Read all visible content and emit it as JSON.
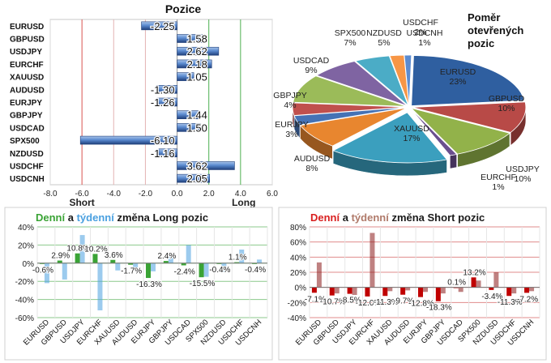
{
  "chart_data": [
    {
      "type": "bar",
      "orientation": "horizontal",
      "title": "Pozice",
      "categories": [
        "EURUSD",
        "GBPUSD",
        "USDJPY",
        "EURCHF",
        "XAUUSD",
        "AUDUSD",
        "EURJPY",
        "GBPJPY",
        "USDCAD",
        "SPX500",
        "NZDUSD",
        "USDCHF",
        "USDCNH"
      ],
      "values": [
        -2.25,
        1.58,
        2.62,
        2.18,
        1.05,
        -1.3,
        -1.26,
        1.44,
        1.5,
        -6.1,
        -1.16,
        3.62,
        2.05
      ],
      "value_labels": [
        "-2.25",
        "1.58",
        "2.62",
        "2.18",
        "1.05",
        "-1.30",
        "-1.26",
        "1.44",
        "1.50",
        "-6.10",
        "-1.16",
        "3.62",
        "2.05"
      ],
      "xlim": [
        -8,
        6
      ],
      "xticks": [
        "-8.0",
        "-6.0",
        "-4.0",
        "-2.0",
        "0.0",
        "2.0",
        "4.0",
        "6.0"
      ],
      "short_label": "Short",
      "long_label": "Long",
      "colors": {
        "bar": "#5b8bd0",
        "bar_dark": "#1f3f7a",
        "short_line": "#d9534f",
        "long_line": "#4caf50"
      }
    },
    {
      "type": "pie",
      "title": [
        "Poměr",
        "otevřených",
        "pozic"
      ],
      "slices": [
        {
          "label": "EURUSD",
          "pct": "23%",
          "value": 23,
          "color": "#2f5fa0"
        },
        {
          "label": "GBPUSD",
          "pct": "10%",
          "value": 10,
          "color": "#b84a47"
        },
        {
          "label": "USDJPY",
          "pct": "10%",
          "value": 10,
          "color": "#92b24a"
        },
        {
          "label": "EURCHF",
          "pct": "1%",
          "value": 1,
          "color": "#6a4f8e"
        },
        {
          "label": "XAUUSD",
          "pct": "17%",
          "value": 17,
          "color": "#3b9fbe"
        },
        {
          "label": "AUDUSD",
          "pct": "8%",
          "value": 8,
          "color": "#e8862f"
        },
        {
          "label": "EURJPY",
          "pct": "3%",
          "value": 3,
          "color": "#4572b5"
        },
        {
          "label": "GBPJPY",
          "pct": "4%",
          "value": 4,
          "color": "#c0504d"
        },
        {
          "label": "USDCAD",
          "pct": "9%",
          "value": 9,
          "color": "#9bbb59"
        },
        {
          "label": "SPX500",
          "pct": "7%",
          "value": 7,
          "color": "#7f64a2"
        },
        {
          "label": "NZDUSD",
          "pct": "5%",
          "value": 5,
          "color": "#4bacc6"
        },
        {
          "label": "USDCHF",
          "pct": "2%",
          "value": 2,
          "color": "#f79646"
        },
        {
          "label": "USDCNH",
          "pct": "1%",
          "value": 1,
          "color": "#5b8bd0"
        }
      ]
    },
    {
      "type": "bar",
      "title": {
        "part1": "Denní",
        "part2": " a ",
        "part3": "týdenní",
        "part4": " změna Long pozic"
      },
      "title_colors": {
        "daily": "#3aa335",
        "weekly": "#4aa0e0",
        "rest": "#1a1a1a"
      },
      "categories": [
        "EURUSD",
        "GBPUSD",
        "USDJPY",
        "EURCHF",
        "XAUUSD",
        "AUDUSD",
        "EURJPY",
        "GBPJPY",
        "USDCAD",
        "SPX500",
        "NZDUSD",
        "USDCHF",
        "USDCNH"
      ],
      "series": [
        {
          "name": "Denní",
          "values": [
            -0.6,
            2.9,
            10.8,
            10.2,
            3.6,
            -1.7,
            -16.3,
            2.4,
            -2.4,
            -15.5,
            -0.4,
            1.1,
            -0.4
          ],
          "color": "#3aa335"
        },
        {
          "name": "týdenní",
          "values": [
            -22,
            -18,
            31,
            -52,
            -8,
            -5,
            -9,
            9,
            20,
            -15,
            -10,
            15,
            4
          ],
          "color": "#4aa0e0"
        }
      ],
      "data_labels": [
        "-0.6%",
        "2.9%",
        "10.8%",
        "10.2%",
        "3.6%",
        "-1.7%",
        "-16.3%",
        "2.4%",
        "-2.4%",
        "-15.5%",
        "-0.4%",
        "1.1%",
        "-0.4%"
      ],
      "ylim": [
        -60,
        40
      ],
      "yticks": [
        "40%",
        "20%",
        "0%",
        "-20%",
        "-40%",
        "-60%"
      ]
    },
    {
      "type": "bar",
      "title": {
        "part1": "Denní",
        "part2": " a ",
        "part3": "týdenní",
        "part4": " změna Short pozic"
      },
      "title_colors": {
        "daily": "#d92020",
        "weekly": "#b07a6a",
        "rest": "#1a1a1a"
      },
      "categories": [
        "EURUSD",
        "GBPUSD",
        "USDJPY",
        "EURCHF",
        "XAUUSD",
        "AUDUSD",
        "EURJPY",
        "GBPJPY",
        "USDCAD",
        "SPX500",
        "NZDUSD",
        "USDCHF",
        "USDCNH"
      ],
      "series": [
        {
          "name": "Denní",
          "values": [
            -7.1,
            -10.7,
            -8.5,
            -12.0,
            -11.3,
            -9.7,
            -12.8,
            -18.3,
            0.1,
            13.2,
            -3.4,
            -11.3,
            -7.2
          ],
          "color": "#c00000"
        },
        {
          "name": "týdenní",
          "values": [
            33,
            -8,
            -10,
            72,
            -5,
            -4,
            -6,
            -8,
            -6,
            9,
            20,
            -8,
            -5
          ],
          "color": "#8b1a1a"
        }
      ],
      "data_labels": [
        "-7.1%",
        "-10.7%",
        "-8.5%",
        "-12.0%",
        "-11.3%",
        "-9.7%",
        "-12.8%",
        "-18.3%",
        "0.1%",
        "13.2%",
        "-3.4%",
        "-11.3%",
        "-7.2%"
      ],
      "ylim": [
        -40,
        80
      ],
      "yticks": [
        "80%",
        "60%",
        "40%",
        "20%",
        "0%",
        "-20%",
        "-40%"
      ]
    }
  ]
}
